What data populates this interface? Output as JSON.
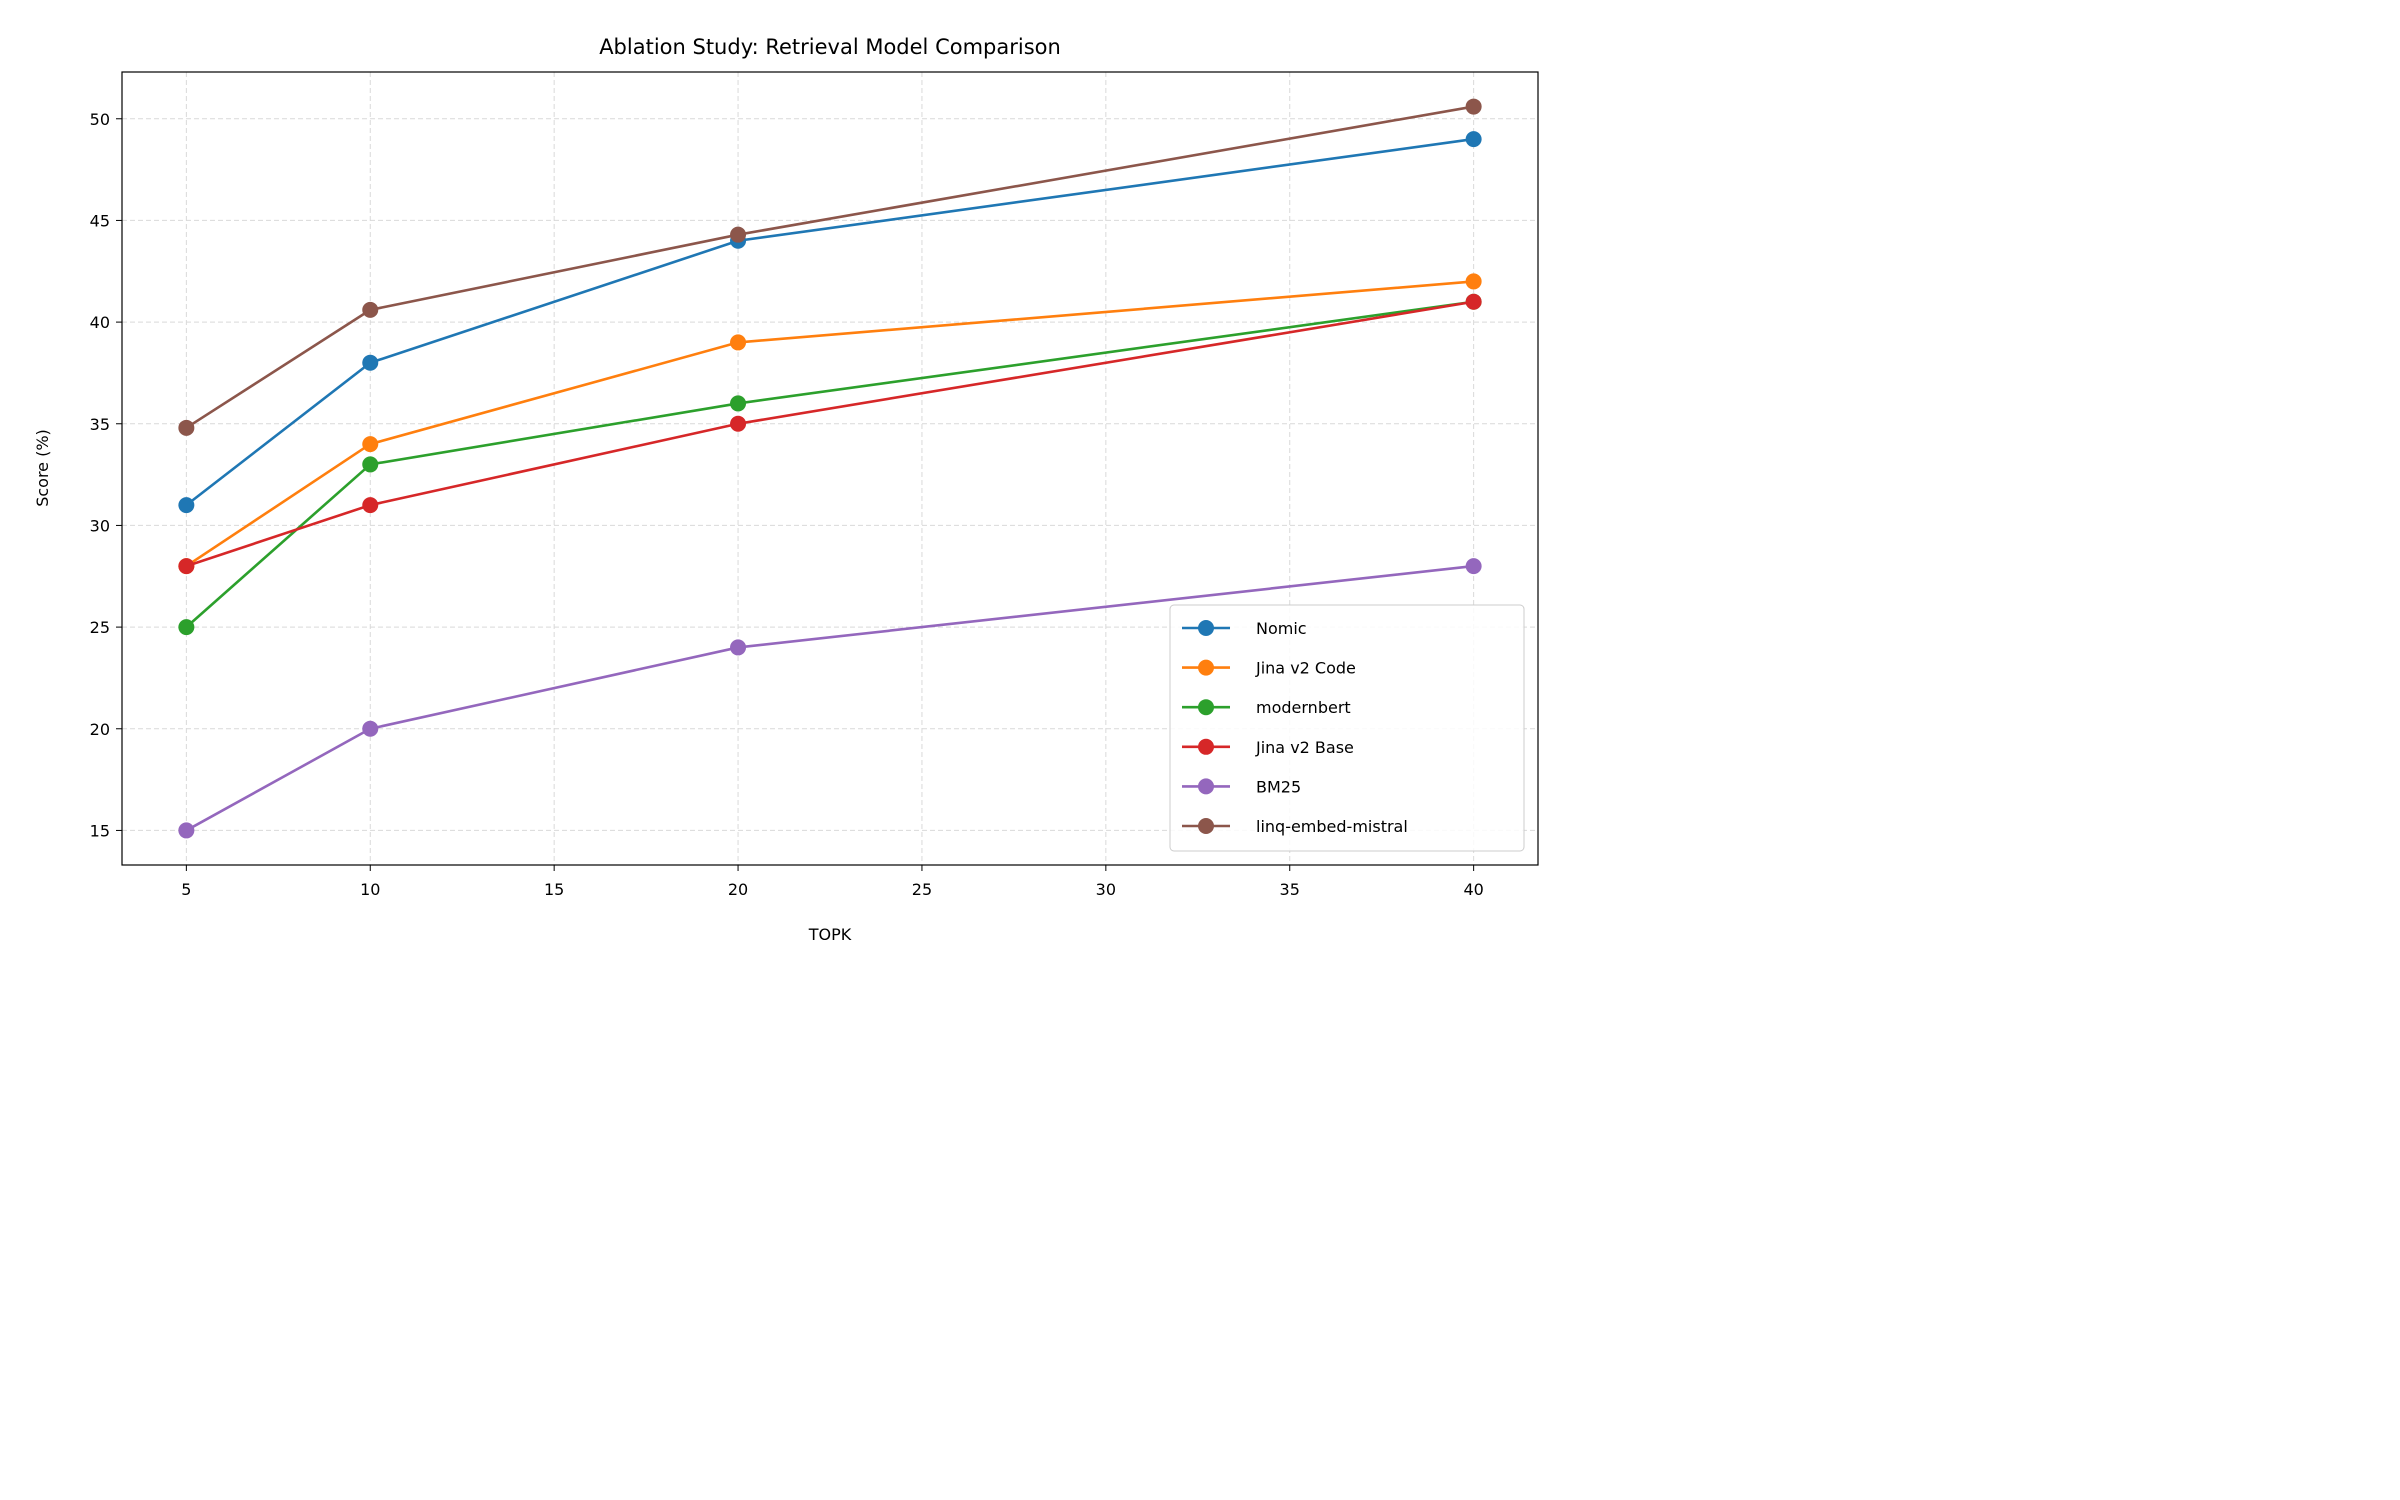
{
  "chart_data": {
    "type": "line",
    "title": "Ablation Study: Retrieval Model Comparison",
    "xlabel": "TOPK",
    "ylabel": "Score (%)",
    "x": [
      5,
      10,
      20,
      40
    ],
    "xlim": [
      3.25,
      41.75
    ],
    "ylim": [
      13.3,
      52.3
    ],
    "xticks": [
      5,
      10,
      15,
      20,
      25,
      30,
      35,
      40
    ],
    "yticks": [
      15,
      20,
      25,
      30,
      35,
      40,
      45,
      50
    ],
    "grid": true,
    "legend_position": "lower-right",
    "series": [
      {
        "name": "Nomic",
        "color": "#1f77b4",
        "values": [
          31,
          38,
          44,
          49
        ]
      },
      {
        "name": "Jina v2 Code",
        "color": "#ff7f0e",
        "values": [
          28,
          34,
          39,
          42
        ]
      },
      {
        "name": "modernbert",
        "color": "#2ca02c",
        "values": [
          25,
          33,
          36,
          41
        ]
      },
      {
        "name": "Jina v2 Base",
        "color": "#d62728",
        "values": [
          28,
          31,
          35,
          41
        ]
      },
      {
        "name": "BM25",
        "color": "#9467bd",
        "values": [
          15,
          20,
          24,
          28
        ]
      },
      {
        "name": "linq-embed-mistral",
        "color": "#8c564b",
        "values": [
          34.8,
          40.6,
          44.3,
          50.6
        ]
      }
    ]
  }
}
